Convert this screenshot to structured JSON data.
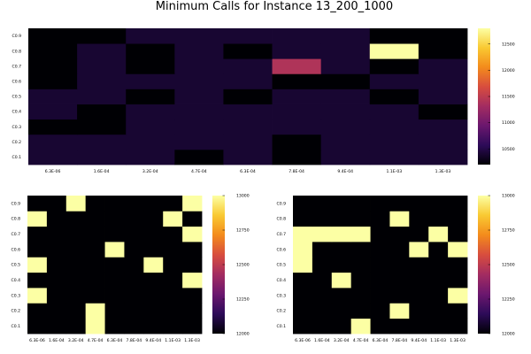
{
  "title": "Minimum Calls for Instance 13_200_1000",
  "colormap": [
    "#000004",
    "#2d0b59",
    "#6b176e",
    "#a32c61",
    "#d84d3e",
    "#f38b1c",
    "#f9c932",
    "#fcffa4"
  ],
  "chart_data": [
    {
      "type": "heatmap",
      "panel": "top",
      "x_tick_labels": [
        "6.3E-06",
        "1.6E-04",
        "3.2E-04",
        "4.7E-04",
        "6.3E-04",
        "7.8E-04",
        "9.4E-04",
        "1.1E-03",
        "1.3E-03"
      ],
      "y_tick_labels": [
        "C0.1",
        "C0.2",
        "C0.3",
        "C0.4",
        "C0.5",
        "C0.6",
        "C0.7",
        "C0.8",
        "C0.9"
      ],
      "clim": [
        10200,
        12800
      ],
      "colorbar_ticks": [
        10000,
        10500,
        11000,
        11500,
        12000,
        12500
      ],
      "colorbar_labels": [
        "10000",
        "10500",
        "11000",
        "11500",
        "12000",
        "12500"
      ],
      "rows_bottom_to_top": [
        [
          10400,
          10400,
          10400,
          10200,
          10400,
          10200,
          10400,
          10400,
          10400
        ],
        [
          10400,
          10400,
          10400,
          10400,
          10400,
          10200,
          10400,
          10400,
          10400
        ],
        [
          10200,
          10200,
          10400,
          10400,
          10400,
          10400,
          10400,
          10400,
          10400
        ],
        [
          10400,
          10200,
          10400,
          10400,
          10400,
          10400,
          10400,
          10400,
          10200
        ],
        [
          10400,
          10400,
          10200,
          10400,
          10200,
          10400,
          10400,
          10200,
          10400
        ],
        [
          10200,
          10400,
          10400,
          10400,
          10400,
          10200,
          10200,
          10400,
          10400
        ],
        [
          10200,
          10400,
          10200,
          10400,
          10400,
          11400,
          10400,
          10200,
          10400
        ],
        [
          10200,
          10400,
          10200,
          10400,
          10200,
          10400,
          10400,
          12800,
          10200
        ],
        [
          10200,
          10200,
          10400,
          10400,
          10400,
          10400,
          10400,
          10200,
          10200
        ]
      ]
    },
    {
      "type": "heatmap",
      "panel": "bottom-left",
      "x_tick_labels": [
        "6.3E-06",
        "1.6E-04",
        "3.2E-04",
        "4.7E-04",
        "6.3E-04",
        "7.8E-04",
        "9.4E-04",
        "1.1E-03",
        "1.3E-03"
      ],
      "y_tick_labels": [
        "C0.1",
        "C0.2",
        "C0.3",
        "C0.4",
        "C0.5",
        "C0.6",
        "C0.7",
        "C0.8",
        "C0.9"
      ],
      "clim": [
        12000,
        13000
      ],
      "colorbar_ticks": [
        12000,
        12250,
        12500,
        12750,
        13000
      ],
      "colorbar_labels": [
        "12000",
        "12250",
        "12500",
        "12750",
        "13000"
      ],
      "rows_bottom_to_top": [
        [
          12000,
          12000,
          12000,
          13000,
          12000,
          12000,
          12000,
          12000,
          12000
        ],
        [
          12000,
          12000,
          12000,
          13000,
          12000,
          12000,
          12000,
          12000,
          12000
        ],
        [
          13000,
          12000,
          12000,
          12000,
          12000,
          12000,
          12000,
          12000,
          12000
        ],
        [
          12000,
          12000,
          12000,
          12000,
          12000,
          12000,
          12000,
          12000,
          13000
        ],
        [
          13000,
          12000,
          12000,
          12000,
          12000,
          12000,
          13000,
          12000,
          12000
        ],
        [
          12000,
          12000,
          12000,
          12000,
          13000,
          12000,
          12000,
          12000,
          12000
        ],
        [
          12000,
          12000,
          12000,
          12000,
          12000,
          12000,
          12000,
          12000,
          13000
        ],
        [
          13000,
          12000,
          12000,
          12000,
          12000,
          12000,
          12000,
          13000,
          12000
        ],
        [
          12000,
          12000,
          13000,
          12000,
          12000,
          12000,
          12000,
          12000,
          13000
        ]
      ]
    },
    {
      "type": "heatmap",
      "panel": "bottom-right",
      "x_tick_labels": [
        "6.3E-06",
        "1.6E-04",
        "3.2E-04",
        "4.7E-04",
        "6.3E-04",
        "7.8E-04",
        "9.4E-04",
        "1.1E-03",
        "1.3E-03"
      ],
      "y_tick_labels": [
        "C0.1",
        "C0.2",
        "C0.3",
        "C0.4",
        "C0.5",
        "C0.6",
        "C0.7",
        "C0.8",
        "C0.9"
      ],
      "clim": [
        12000,
        13000
      ],
      "colorbar_ticks": [
        12000,
        12250,
        12500,
        12750,
        13000
      ],
      "colorbar_labels": [
        "12000",
        "12250",
        "12500",
        "12750",
        "13000"
      ],
      "rows_bottom_to_top": [
        [
          12000,
          12000,
          12000,
          13000,
          12000,
          12000,
          12000,
          12000,
          12000
        ],
        [
          12000,
          12000,
          12000,
          12000,
          12000,
          13000,
          12000,
          12000,
          12000
        ],
        [
          12000,
          12000,
          12000,
          12000,
          12000,
          12000,
          12000,
          12000,
          13000
        ],
        [
          12000,
          12000,
          13000,
          12000,
          12000,
          12000,
          12000,
          12000,
          12000
        ],
        [
          13000,
          12000,
          12000,
          12000,
          12000,
          12000,
          12000,
          12000,
          12000
        ],
        [
          13000,
          12000,
          12000,
          12000,
          12000,
          12000,
          13000,
          12000,
          13000
        ],
        [
          13000,
          13000,
          13000,
          13000,
          12000,
          12000,
          12000,
          13000,
          12000
        ],
        [
          12000,
          12000,
          12000,
          12000,
          12000,
          13000,
          12000,
          12000,
          12000
        ],
        [
          12000,
          12000,
          12000,
          12000,
          12000,
          12000,
          12000,
          12000,
          12000
        ]
      ]
    }
  ]
}
